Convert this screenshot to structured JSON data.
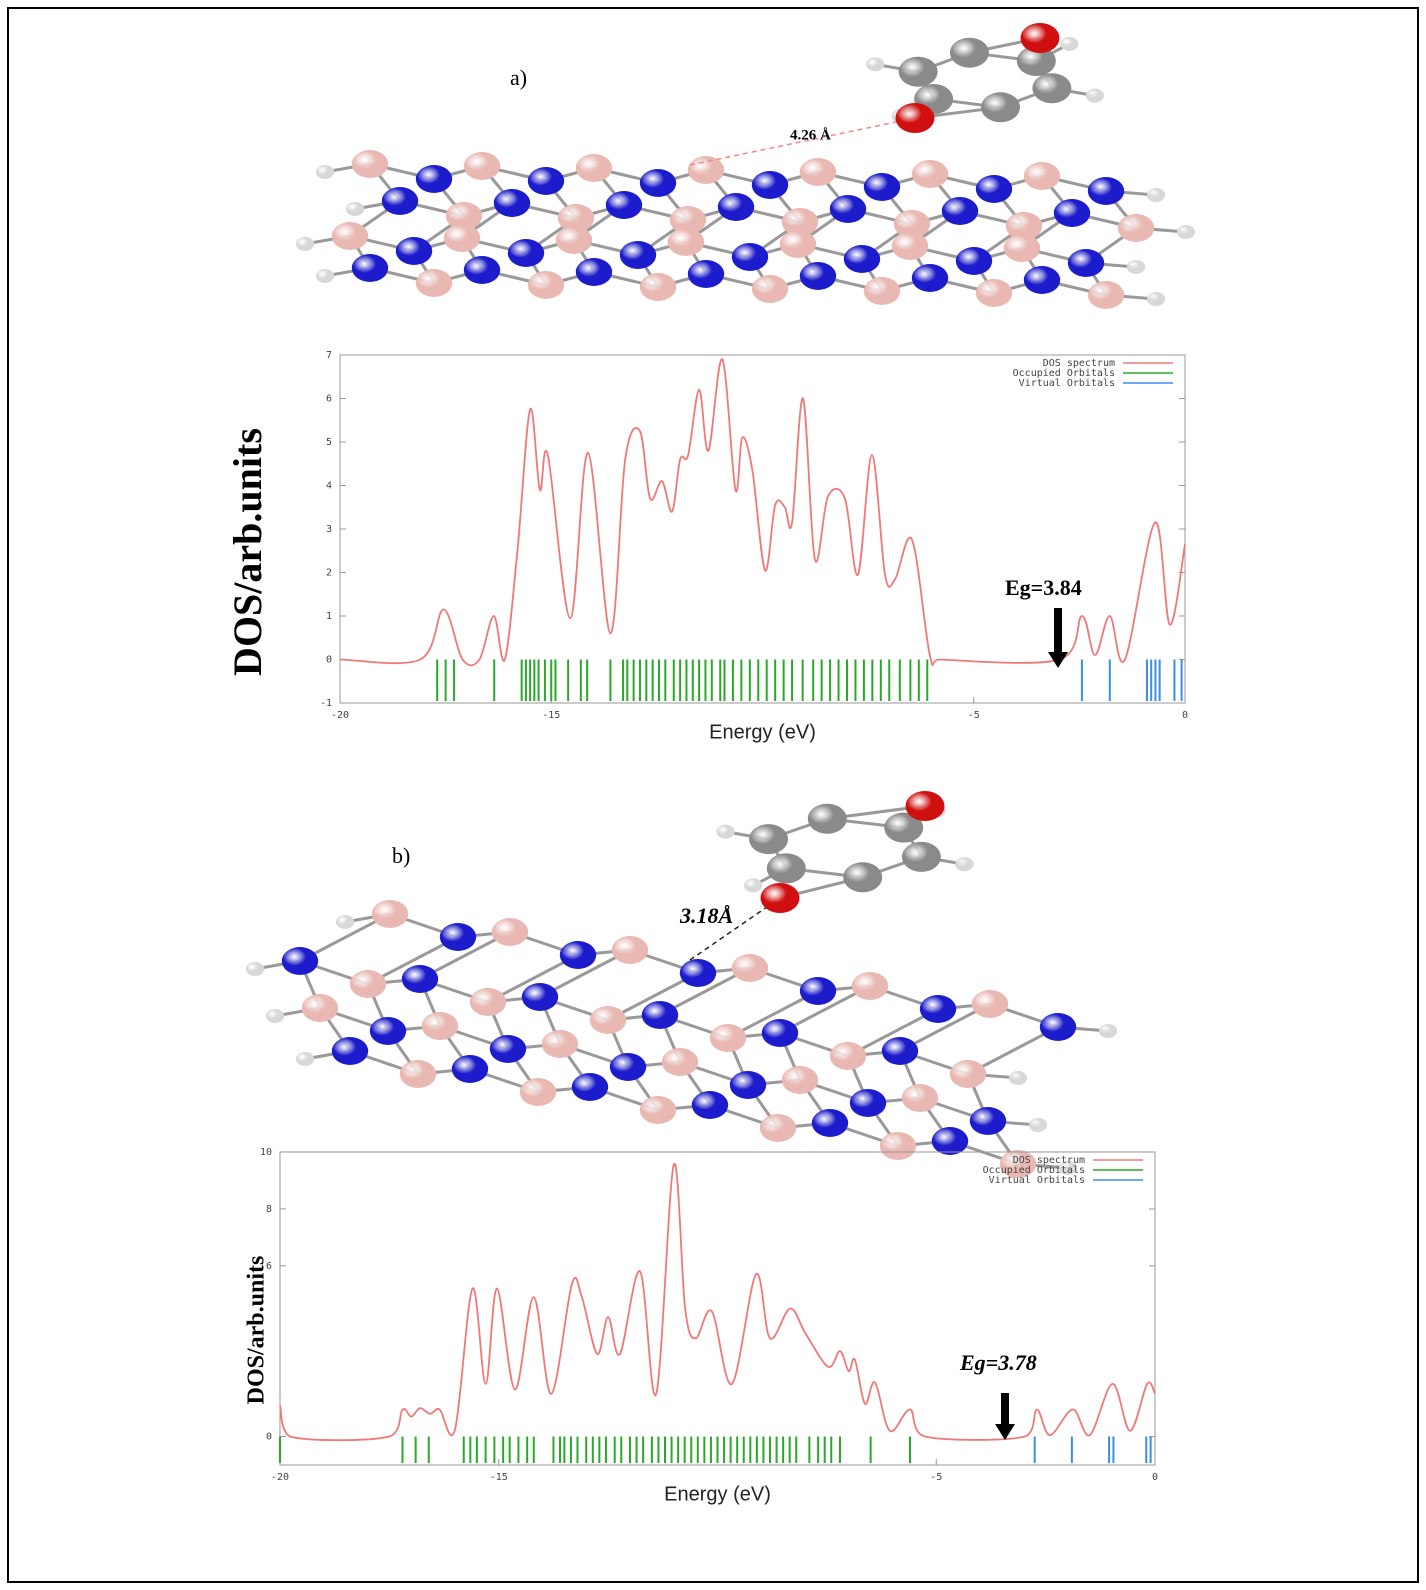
{
  "chart_data": [
    {
      "type": "line",
      "annotations": [
        "a)",
        "4.26 Å",
        "Eg=3.84"
      ],
      "xlabel": "Energy (eV)",
      "ylabel": "DOS/arb.units",
      "xlim": [
        -20,
        0
      ],
      "ylim": [
        -1,
        7
      ],
      "xticks": [
        -20,
        -15,
        -5,
        0
      ],
      "yticks": [
        -1,
        0,
        1,
        2,
        3,
        4,
        5,
        6,
        7
      ],
      "legend": "upper right",
      "series": [
        {
          "name": "DOS spectrum",
          "color": "#f07878",
          "x": [
            -20,
            -18.1,
            -17.55,
            -17.1,
            -16.7,
            -16.36,
            -16.1,
            -15.8,
            -15.5,
            -15.27,
            -15.08,
            -14.55,
            -14.13,
            -13.6,
            -13.25,
            -12.9,
            -12.66,
            -12.38,
            -12.14,
            -11.95,
            -11.76,
            -11.5,
            -11.28,
            -10.95,
            -10.64,
            -10.48,
            -10.24,
            -9.94,
            -9.7,
            -9.47,
            -9.3,
            -9.04,
            -8.76,
            -8.45,
            -8.05,
            -7.74,
            -7.41,
            -7.1,
            -6.86,
            -6.46,
            -6.04,
            -5.8,
            -2.96,
            -2.44,
            -2.13,
            -1.78,
            -1.42,
            -0.71,
            -0.36,
            0
          ],
          "values": [
            0,
            0,
            1.15,
            0,
            0,
            1.0,
            0,
            2.5,
            5.75,
            3.9,
            4.7,
            0.95,
            4.75,
            0.6,
            4.6,
            5.25,
            3.7,
            4.1,
            3.4,
            4.6,
            4.7,
            6.2,
            4.8,
            6.9,
            3.9,
            5.1,
            4.35,
            2.05,
            3.55,
            3.5,
            3.15,
            6.0,
            2.3,
            3.75,
            3.7,
            1.95,
            4.7,
            1.95,
            1.85,
            2.75,
            0.1,
            0,
            0,
            1.0,
            0.1,
            1.0,
            0,
            3.15,
            0.8,
            2.65
          ]
        },
        {
          "name": "Occupied Orbitals",
          "color": "#2aa82a",
          "x": [
            -17.7,
            -17.5,
            -17.3,
            -16.35,
            -15.7,
            -15.6,
            -15.5,
            -15.4,
            -15.3,
            -15.15,
            -15.0,
            -14.9,
            -14.6,
            -14.3,
            -14.15,
            -13.6,
            -13.3,
            -13.2,
            -13.05,
            -12.9,
            -12.75,
            -12.6,
            -12.45,
            -12.3,
            -12.1,
            -11.95,
            -11.8,
            -11.65,
            -11.5,
            -11.35,
            -11.2,
            -11.0,
            -10.9,
            -10.7,
            -10.5,
            -10.3,
            -10.1,
            -9.9,
            -9.7,
            -9.5,
            -9.3,
            -9.05,
            -8.8,
            -8.6,
            -8.4,
            -8.2,
            -8.0,
            -7.8,
            -7.6,
            -7.4,
            -7.2,
            -7.0,
            -6.75,
            -6.5,
            -6.3,
            -6.1
          ]
        },
        {
          "name": "Virtual Orbitals",
          "color": "#3a8ee6",
          "x": [
            -2.44,
            -1.78,
            -0.9,
            -0.8,
            -0.7,
            -0.6,
            -0.25,
            -0.08
          ]
        }
      ]
    },
    {
      "type": "line",
      "annotations": [
        "b)",
        "3.18Å",
        "Eg=3.78"
      ],
      "xlabel": "Energy (eV)",
      "ylabel": "DOS/arb.units",
      "xlim": [
        -20,
        0
      ],
      "ylim": [
        -1,
        10
      ],
      "xticks": [
        -20,
        -15,
        -5,
        0
      ],
      "yticks": [
        0,
        6,
        8,
        10
      ],
      "legend": "upper right",
      "series": [
        {
          "name": "DOS spectrum",
          "color": "#f07878",
          "x": [
            -20,
            -19.77,
            -17.5,
            -17.2,
            -17.0,
            -16.8,
            -16.57,
            -16.35,
            -16.0,
            -15.6,
            -15.3,
            -15.04,
            -14.63,
            -14.2,
            -13.8,
            -13.33,
            -13.1,
            -12.75,
            -12.5,
            -12.23,
            -11.77,
            -11.4,
            -11.0,
            -10.74,
            -10.5,
            -10.13,
            -9.67,
            -9.12,
            -8.8,
            -8.34,
            -7.98,
            -7.47,
            -7.2,
            -7.0,
            -6.86,
            -6.63,
            -6.4,
            -6.06,
            -5.6,
            -5.26,
            -2.97,
            -2.7,
            -2.4,
            -1.88,
            -1.49,
            -0.97,
            -0.57,
            -0.18,
            0
          ],
          "values": [
            1.1,
            0,
            0,
            0.95,
            0.7,
            1.0,
            0.8,
            0.95,
            0.25,
            5.2,
            1.85,
            5.2,
            1.65,
            4.9,
            1.5,
            5.35,
            4.9,
            2.9,
            4.2,
            2.9,
            5.8,
            1.5,
            9.55,
            4.5,
            3.45,
            4.4,
            1.85,
            5.7,
            3.45,
            4.5,
            3.6,
            2.45,
            3.0,
            2.3,
            2.7,
            1.15,
            1.9,
            0.2,
            0.95,
            0,
            0,
            0.95,
            0.05,
            0.95,
            0.05,
            1.85,
            0.2,
            1.85,
            1.5
          ]
        },
        {
          "name": "Occupied Orbitals",
          "color": "#2aa82a",
          "x": [
            -20,
            -17.2,
            -16.9,
            -16.6,
            -15.8,
            -15.65,
            -15.5,
            -15.3,
            -15.1,
            -14.9,
            -14.75,
            -14.55,
            -14.35,
            -14.2,
            -13.75,
            -13.6,
            -13.5,
            -13.35,
            -13.2,
            -13.0,
            -12.85,
            -12.7,
            -12.55,
            -12.35,
            -12.2,
            -12.0,
            -11.85,
            -11.7,
            -11.5,
            -11.35,
            -11.2,
            -11.05,
            -10.9,
            -10.75,
            -10.6,
            -10.45,
            -10.3,
            -10.15,
            -10.0,
            -9.85,
            -9.7,
            -9.55,
            -9.4,
            -9.25,
            -9.1,
            -8.95,
            -8.8,
            -8.65,
            -8.5,
            -8.35,
            -8.2,
            -7.9,
            -7.7,
            -7.55,
            -7.4,
            -7.2,
            -6.5,
            -5.6
          ]
        },
        {
          "name": "Virtual Orbitals",
          "color": "#3a8ee6",
          "x": [
            -2.75,
            -1.9,
            -1.05,
            -0.95,
            -0.2,
            -0.1
          ]
        }
      ]
    }
  ]
}
